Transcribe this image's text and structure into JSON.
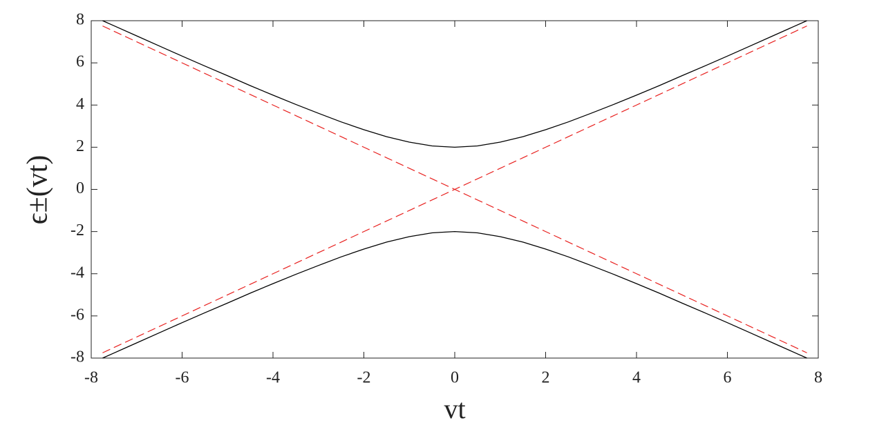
{
  "chart_data": {
    "type": "line",
    "xlabel": "vt",
    "ylabel": "ϵ±(vt)",
    "x": [
      -7.75,
      -7.5,
      -7,
      -6.5,
      -6,
      -5.5,
      -5,
      -4.5,
      -4,
      -3.5,
      -3,
      -2.5,
      -2,
      -1.5,
      -1,
      -0.5,
      0,
      0.5,
      1,
      1.5,
      2,
      2.5,
      3,
      3.5,
      4,
      4.5,
      5,
      5.5,
      6,
      6.5,
      7,
      7.5,
      7.75
    ],
    "series": [
      {
        "color": "#000000",
        "dashed": false,
        "values": [
          8,
          7.76,
          7.28,
          6.8,
          6.32,
          5.85,
          5.39,
          4.92,
          4.47,
          4.03,
          3.61,
          3.2,
          2.83,
          2.5,
          2.24,
          2.06,
          2,
          2.06,
          2.24,
          2.5,
          2.83,
          3.2,
          3.61,
          4.03,
          4.47,
          4.92,
          5.39,
          5.85,
          6.32,
          6.8,
          7.28,
          7.76,
          8
        ]
      },
      {
        "color": "#000000",
        "dashed": false,
        "values": [
          -8,
          -7.76,
          -7.28,
          -6.8,
          -6.32,
          -5.85,
          -5.39,
          -4.92,
          -4.47,
          -4.03,
          -3.61,
          -3.2,
          -2.83,
          -2.5,
          -2.24,
          -2.06,
          -2,
          -2.06,
          -2.24,
          -2.5,
          -2.83,
          -3.2,
          -3.61,
          -4.03,
          -4.47,
          -4.92,
          -5.39,
          -5.85,
          -6.32,
          -6.8,
          -7.28,
          -7.76,
          -8
        ]
      },
      {
        "color": "#e8201e",
        "dashed": true,
        "values": [
          7.75,
          7.5,
          7,
          6.5,
          6,
          5.5,
          5,
          4.5,
          4,
          3.5,
          3,
          2.5,
          2,
          1.5,
          1,
          0.5,
          0,
          -0.5,
          -1,
          -1.5,
          -2,
          -2.5,
          -3,
          -3.5,
          -4,
          -4.5,
          -5,
          -5.5,
          -6,
          -6.5,
          -7,
          -7.5,
          -7.75
        ]
      },
      {
        "color": "#e8201e",
        "dashed": true,
        "values": [
          -7.75,
          -7.5,
          -7,
          -6.5,
          -6,
          -5.5,
          -5,
          -4.5,
          -4,
          -3.5,
          -3,
          -2.5,
          -2,
          -1.5,
          -1,
          -0.5,
          0,
          0.5,
          1,
          1.5,
          2,
          2.5,
          3,
          3.5,
          4,
          4.5,
          5,
          5.5,
          6,
          6.5,
          7,
          7.5,
          7.75
        ]
      }
    ],
    "xlim": [
      -8,
      8
    ],
    "xticks": [
      -8,
      -6,
      -4,
      -2,
      0,
      2,
      4,
      6,
      8
    ],
    "ylim": [
      -8,
      8
    ],
    "yticks": [
      -8,
      -6,
      -4,
      -2,
      0,
      2,
      4,
      6,
      8
    ],
    "grid": false
  }
}
